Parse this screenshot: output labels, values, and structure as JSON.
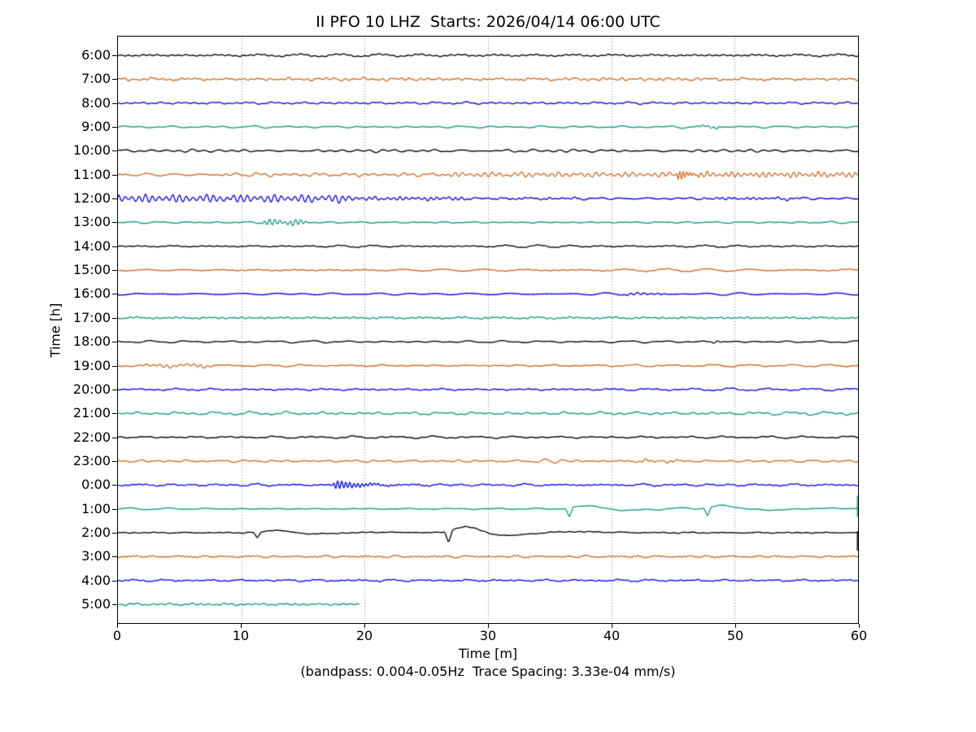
{
  "title": "II PFO 10 LHZ  Starts: 2026/04/14 06:00 UTC",
  "ylabel": "Time [h]",
  "xlabel": "Time [m]",
  "caption": "(bandpass: 0.004-0.05Hz  Trace Spacing: 3.33e-04 mm/s)",
  "chart_data": {
    "type": "line",
    "subtype": "seismogram-dayplot",
    "x_range": [
      0,
      60
    ],
    "x_unit": "minutes",
    "x_ticks": [
      "0",
      "10",
      "20",
      "30",
      "40",
      "50",
      "60"
    ],
    "x_grid_minutes": [
      10,
      20,
      30,
      40,
      50
    ],
    "grid_style": "vertical-dotted",
    "minutes_per_row": 60,
    "palette": [
      "#000000",
      "#D2691E",
      "#0505EC",
      "#0D9C76"
    ],
    "rows": [
      {
        "label": "6:00",
        "color": 0,
        "noise": 1.6,
        "end": 60,
        "events": []
      },
      {
        "label": "7:00",
        "color": 1,
        "noise": 1.9,
        "end": 60,
        "events": []
      },
      {
        "label": "8:00",
        "color": 2,
        "noise": 1.4,
        "end": 60,
        "events": []
      },
      {
        "label": "9:00",
        "color": 3,
        "noise": 1.4,
        "end": 60,
        "events": [
          {
            "type": "tremor",
            "t0": 46.5,
            "t1": 49.5,
            "amp": 1.5,
            "period": 0.45
          }
        ]
      },
      {
        "label": "10:00",
        "color": 0,
        "noise": 1.7,
        "end": 60,
        "events": []
      },
      {
        "label": "11:00",
        "color": 1,
        "noise": 1.6,
        "end": 60,
        "events": [
          {
            "type": "tremor",
            "t0": 8,
            "t1": 27,
            "amp": 1.4,
            "period": 0.8
          },
          {
            "type": "tremor",
            "t0": 26.5,
            "t1": 45.5,
            "amp": 2.6,
            "period": 0.6
          },
          {
            "type": "wavelet",
            "t0": 45.2,
            "amp": 8,
            "period": 0.28,
            "decay": 0.9
          },
          {
            "type": "tremor",
            "t0": 46.5,
            "t1": 60,
            "amp": 3.0,
            "period": 0.5,
            "rel": 0.01
          }
        ]
      },
      {
        "label": "12:00",
        "color": 2,
        "noise": 1.4,
        "end": 60,
        "events": [
          {
            "type": "tremor",
            "t0": 0,
            "t1": 20,
            "amp": 4.5,
            "period": 0.55,
            "att": 0.01
          },
          {
            "type": "tremor",
            "t0": 19.5,
            "t1": 30,
            "amp": 2.0,
            "period": 0.5,
            "rel": 3
          },
          {
            "type": "tremor",
            "t0": 30,
            "t1": 38,
            "amp": 0.9,
            "period": 0.5
          },
          {
            "type": "tremor",
            "t0": 47,
            "t1": 56,
            "amp": 1.2,
            "period": 0.5
          }
        ]
      },
      {
        "label": "13:00",
        "color": 3,
        "noise": 1.1,
        "end": 60,
        "events": [
          {
            "type": "tremor",
            "t0": 11.3,
            "t1": 15.8,
            "amp": 3.5,
            "period": 0.42
          }
        ]
      },
      {
        "label": "14:00",
        "color": 0,
        "noise": 1.3,
        "end": 60,
        "events": []
      },
      {
        "label": "15:00",
        "color": 1,
        "noise": 1.6,
        "end": 60,
        "events": []
      },
      {
        "label": "16:00",
        "color": 2,
        "noise": 1.5,
        "end": 60,
        "events": [
          {
            "type": "tremor",
            "t0": 40.5,
            "t1": 44.8,
            "amp": 1.3,
            "period": 0.55
          }
        ]
      },
      {
        "label": "17:00",
        "color": 3,
        "noise": 1.5,
        "end": 60,
        "events": []
      },
      {
        "label": "18:00",
        "color": 0,
        "noise": 1.3,
        "end": 60,
        "events": [
          {
            "type": "tremor",
            "t0": 47.6,
            "t1": 49.4,
            "amp": 1.7,
            "period": 0.6
          }
        ]
      },
      {
        "label": "19:00",
        "color": 1,
        "noise": 1.5,
        "end": 60,
        "events": [
          {
            "type": "tremor",
            "t0": 1.5,
            "t1": 8.5,
            "amp": 1.8,
            "period": 0.55
          }
        ]
      },
      {
        "label": "20:00",
        "color": 2,
        "noise": 1.5,
        "end": 60,
        "events": []
      },
      {
        "label": "21:00",
        "color": 3,
        "noise": 2.1,
        "end": 60,
        "events": []
      },
      {
        "label": "22:00",
        "color": 0,
        "noise": 1.4,
        "end": 60,
        "events": []
      },
      {
        "label": "23:00",
        "color": 1,
        "noise": 1.5,
        "end": 60,
        "events": [
          {
            "type": "tremor",
            "t0": 33.2,
            "t1": 37.2,
            "amp": 2.2,
            "period": 1.5
          },
          {
            "type": "tremor",
            "t0": 41,
            "t1": 46,
            "amp": 1.2,
            "period": 0.5
          }
        ]
      },
      {
        "label": "0:00",
        "color": 2,
        "noise": 1.4,
        "end": 60,
        "events": [
          {
            "type": "wavelet",
            "t0": 17.4,
            "amp": 6,
            "period": 0.33,
            "decay": 2.2
          }
        ]
      },
      {
        "label": "1:00",
        "color": 3,
        "noise": 1.0,
        "end": 60,
        "events": [
          {
            "type": "vspike",
            "t0": 36.6,
            "depth": 11,
            "bump": 4.5
          },
          {
            "type": "vspike",
            "t0": 47.8,
            "depth": 10,
            "bump": 4
          },
          {
            "type": "edge",
            "up": 16,
            "down": 10
          }
        ]
      },
      {
        "label": "2:00",
        "color": 0,
        "noise": 0.7,
        "end": 60,
        "events": [
          {
            "type": "vspike",
            "t0": 11.3,
            "depth": 8,
            "bump": 3.5
          },
          {
            "type": "vspike",
            "t0": 26.8,
            "depth": 14,
            "bump": 8.5
          },
          {
            "type": "edge",
            "up": 2,
            "down": 22
          }
        ]
      },
      {
        "label": "3:00",
        "color": 1,
        "noise": 1.5,
        "end": 60,
        "events": []
      },
      {
        "label": "4:00",
        "color": 2,
        "noise": 1.4,
        "end": 60,
        "events": []
      },
      {
        "label": "5:00",
        "color": 3,
        "noise": 1.5,
        "end": 19.6,
        "events": []
      }
    ]
  }
}
